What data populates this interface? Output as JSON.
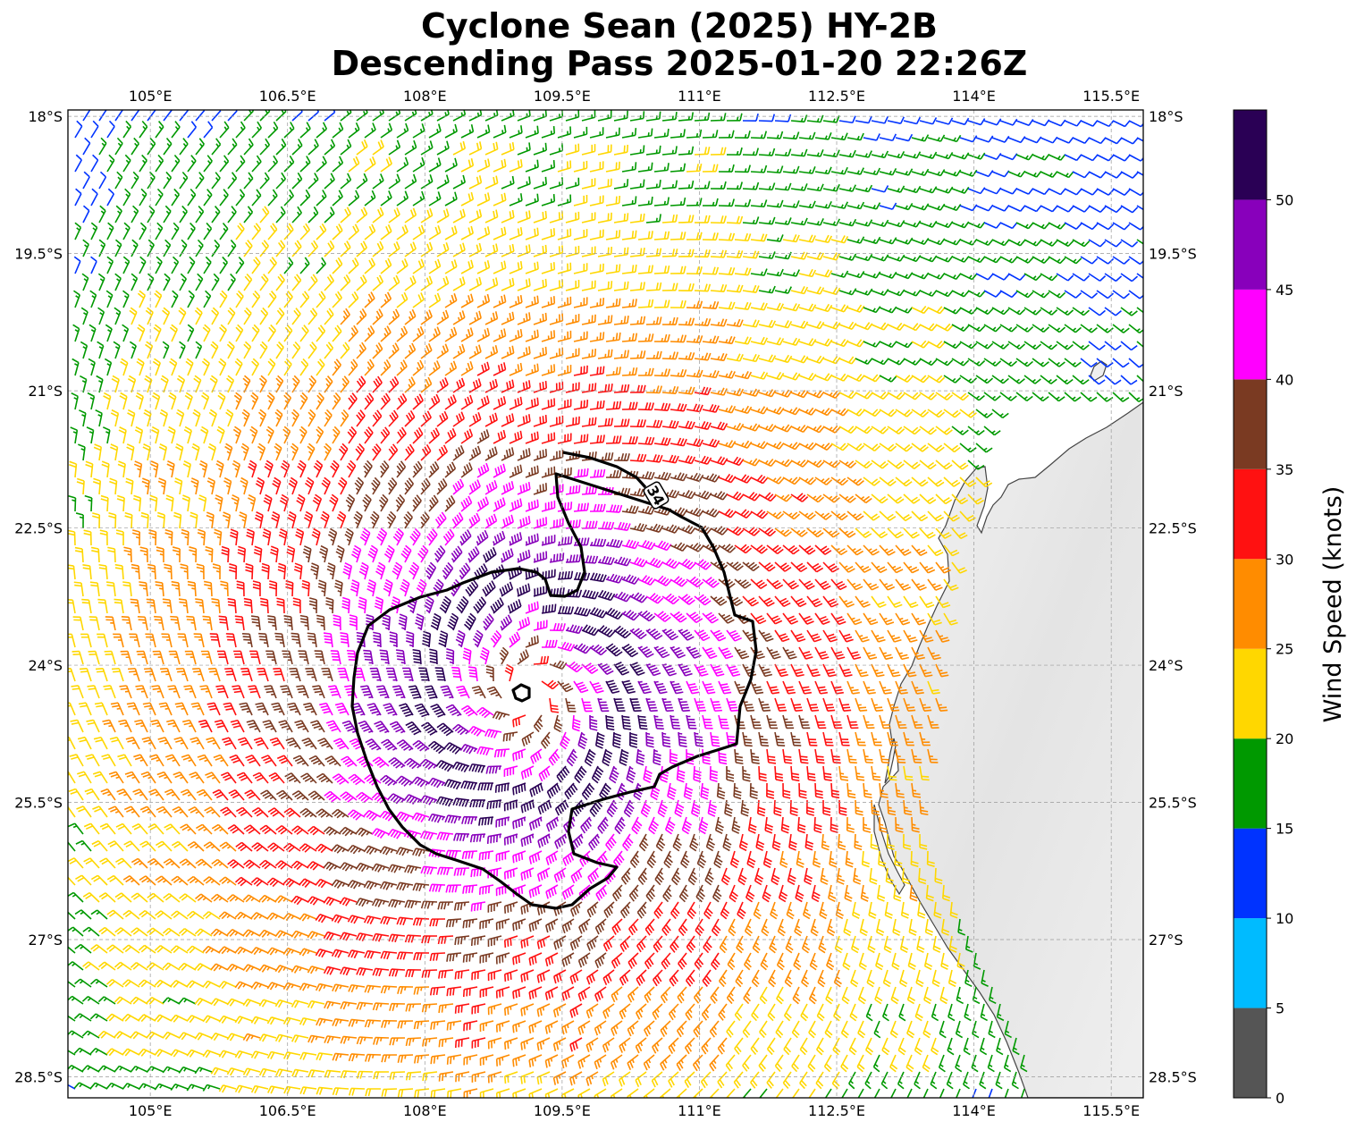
{
  "title_line1": "Cyclone Sean (2025) HY-2B",
  "title_line2": "Descending Pass 2025-01-20 22:26Z",
  "map": {
    "lon_ticks": [
      "105°E",
      "106.5°E",
      "108°E",
      "109.5°E",
      "111°E",
      "112.5°E",
      "114°E",
      "115.5°E"
    ],
    "lon_values": [
      105,
      106.5,
      108,
      109.5,
      111,
      112.5,
      114,
      115.5
    ],
    "lat_ticks": [
      "18°S",
      "19.5°S",
      "21°S",
      "22.5°S",
      "24°S",
      "25.5°S",
      "27°S",
      "28.5°S"
    ],
    "lat_values": [
      -18,
      -19.5,
      -21,
      -22.5,
      -24,
      -25.5,
      -27,
      -28.5
    ],
    "lon_range": [
      104.1,
      115.85
    ],
    "lat_range": [
      -28.73,
      -17.93
    ],
    "contour_label": "34",
    "storm_center": {
      "lon": 109.1,
      "lat": -24.3
    }
  },
  "colorbar": {
    "label": "Wind Speed (knots)",
    "tick_labels": [
      "0",
      "5",
      "10",
      "15",
      "20",
      "25",
      "30",
      "35",
      "40",
      "45",
      "50"
    ],
    "bins": [
      0,
      5,
      10,
      15,
      20,
      25,
      30,
      35,
      40,
      45,
      50,
      55
    ],
    "colors": [
      "#555555",
      "#00bbff",
      "#0033ff",
      "#009900",
      "#ffd700",
      "#ff8c00",
      "#ff1111",
      "#7a3a22",
      "#ff00ff",
      "#8800bb",
      "#2a0055"
    ]
  }
}
